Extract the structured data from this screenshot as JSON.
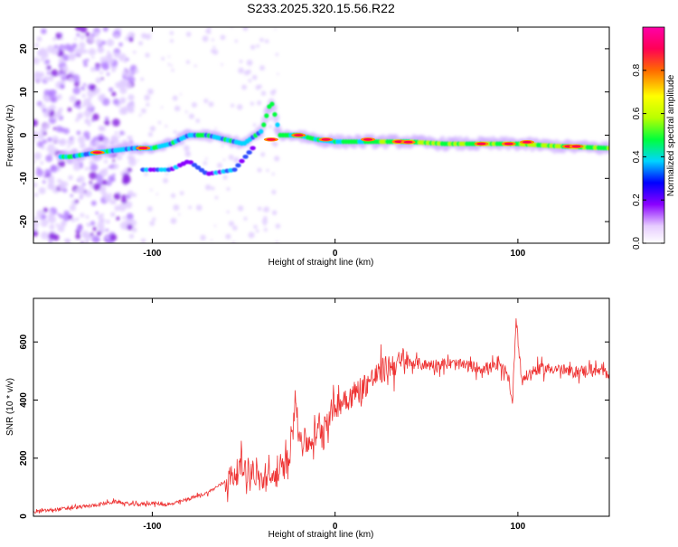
{
  "title": "S233.2025.320.15.56.R22",
  "chart_data": [
    {
      "type": "heatmap",
      "name": "spectrogram",
      "xlabel": "Height of straight line (km)",
      "ylabel": "Frequency (Hz)",
      "xlim": [
        -165,
        150
      ],
      "ylim": [
        -25,
        25
      ],
      "xticks": [
        -100,
        0,
        100
      ],
      "yticks": [
        -20,
        -10,
        0,
        10,
        20
      ],
      "ridge": [
        [
          -145,
          -5
        ],
        [
          -130,
          -4
        ],
        [
          -120,
          -3.5
        ],
        [
          -110,
          -3
        ],
        [
          -100,
          -3
        ],
        [
          -90,
          -2
        ],
        [
          -80,
          0
        ],
        [
          -70,
          0
        ],
        [
          -60,
          -1
        ],
        [
          -50,
          -2
        ],
        [
          -40,
          1
        ],
        [
          -35,
          8
        ],
        [
          -30,
          0
        ],
        [
          -20,
          0
        ],
        [
          -10,
          -1
        ],
        [
          0,
          -1.5
        ],
        [
          20,
          -1.5
        ],
        [
          40,
          -1.5
        ],
        [
          60,
          -2
        ],
        [
          80,
          -2
        ],
        [
          100,
          -2
        ],
        [
          120,
          -2.5
        ],
        [
          150,
          -3
        ]
      ],
      "secondary_ridge": [
        [
          -105,
          -8
        ],
        [
          -90,
          -8
        ],
        [
          -80,
          -6
        ],
        [
          -70,
          -9
        ],
        [
          -55,
          -8
        ],
        [
          -45,
          -3
        ]
      ],
      "colorbar": {
        "label": "Normalized spectral amplitude",
        "range": [
          0,
          1
        ],
        "ticks": [
          "0.0",
          "0.2",
          "0.4",
          "0.6",
          "0.8"
        ],
        "colors": [
          "#f3e6ff",
          "#8a00ff",
          "#0000ff",
          "#00d5ff",
          "#00ff3c",
          "#b8ff00",
          "#ffff00",
          "#ff6a00",
          "#ff0055",
          "#ff00a8"
        ]
      }
    },
    {
      "type": "line",
      "name": "snr",
      "xlabel": "Height of straight line (km)",
      "ylabel": "SNR (10 * v/v)",
      "xlim": [
        -165,
        150
      ],
      "ylim": [
        0,
        750
      ],
      "xticks": [
        -100,
        0,
        100
      ],
      "yticks": [
        0,
        200,
        400,
        600
      ],
      "color": "#ee3333",
      "x": [
        -165,
        -150,
        -135,
        -120,
        -110,
        -100,
        -90,
        -80,
        -70,
        -60,
        -50,
        -45,
        -40,
        -35,
        -30,
        -25,
        -22,
        -20,
        -15,
        -10,
        -5,
        0,
        10,
        20,
        30,
        40,
        50,
        60,
        70,
        80,
        90,
        95,
        97,
        99,
        102,
        110,
        120,
        130,
        140,
        150
      ],
      "y": [
        15,
        25,
        35,
        50,
        40,
        45,
        40,
        60,
        80,
        120,
        170,
        150,
        120,
        130,
        150,
        200,
        430,
        280,
        250,
        280,
        330,
        380,
        420,
        470,
        520,
        530,
        520,
        525,
        520,
        510,
        515,
        480,
        380,
        690,
        470,
        505,
        510,
        495,
        505,
        490
      ]
    }
  ]
}
